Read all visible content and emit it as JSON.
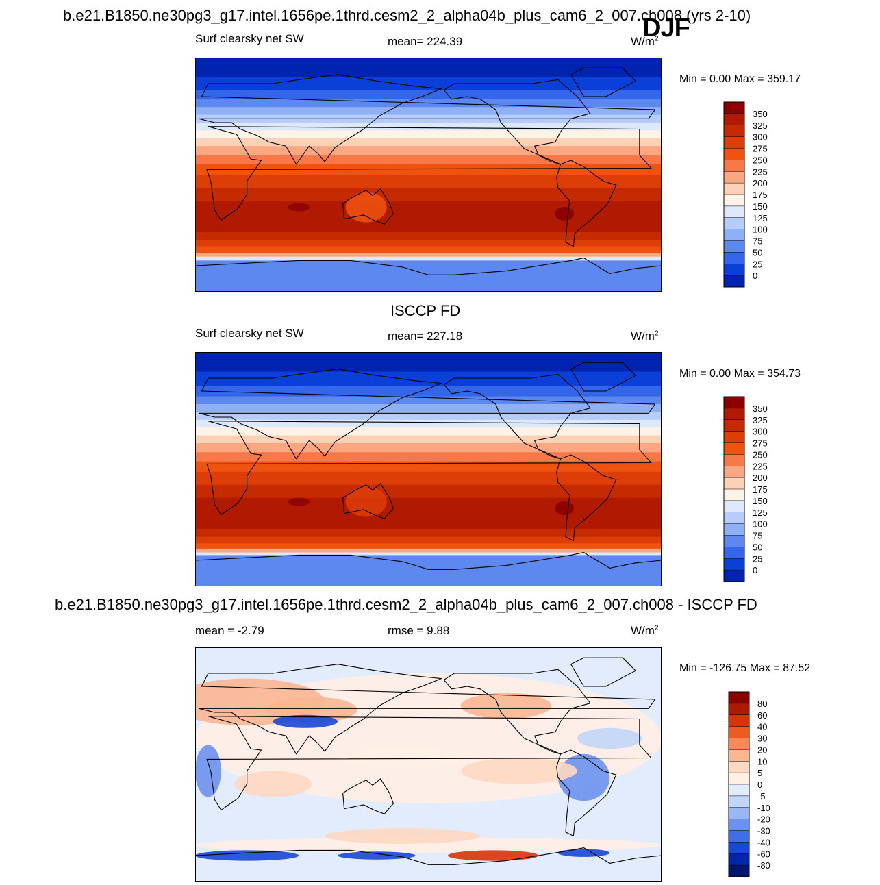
{
  "header": {
    "title": "b.e21.B1850.ne30pg3_g17.intel.1656pe.1thrd.cesm2_2_alpha04b_plus_cam6_2_007.ch008 (yrs 2-10)",
    "season": "DJF"
  },
  "panels": [
    {
      "id": "model",
      "heading": "",
      "left_label": "Surf clearsky net SW",
      "center_label": "mean= 224.39",
      "units": "W/m",
      "units_sup": "2",
      "minmax": "Min =   0.00 Max = 359.17"
    },
    {
      "id": "obs",
      "heading": "ISCCP FD",
      "left_label": "Surf clearsky net SW",
      "center_label": "mean= 227.18",
      "units": "W/m",
      "units_sup": "2",
      "minmax": "Min =   0.00 Max = 354.73"
    },
    {
      "id": "diff",
      "heading": "b.e21.B1850.ne30pg3_g17.intel.1656pe.1thrd.cesm2_2_alpha04b_plus_cam6_2_007.ch008 - ISCCP FD",
      "left_label": "mean =  -2.79",
      "center_label": "rmse =   9.88",
      "units": "W/m",
      "units_sup": "2",
      "minmax": "Min = -126.75 Max =  87.52"
    }
  ],
  "chart_data": [
    {
      "type": "heatmap",
      "title": "Surf clearsky net SW",
      "mean": 224.39,
      "units": "W/m2",
      "min": 0.0,
      "max": 359.17,
      "colorbar": {
        "levels": [
          "350",
          "325",
          "300",
          "275",
          "250",
          "225",
          "200",
          "175",
          "150",
          "125",
          "100",
          "75",
          "50",
          "25",
          "0"
        ],
        "colors": [
          "#8b0000",
          "#b01a00",
          "#c62a00",
          "#dd3d07",
          "#f0530f",
          "#f8784a",
          "#fba882",
          "#fdd1b5",
          "#fff2e6",
          "#dde8fb",
          "#b5cdf8",
          "#8fb0f4",
          "#5d88ef",
          "#3366e8",
          "#0a40d8",
          "#0024b0"
        ]
      },
      "zonal_profile_deg_lat": [
        90,
        60,
        30,
        0,
        -30,
        -60,
        -90
      ],
      "zonal_profile_value": [
        0,
        30,
        200,
        300,
        340,
        300,
        90
      ]
    },
    {
      "type": "heatmap",
      "title": "Surf clearsky net SW",
      "mean": 227.18,
      "units": "W/m2",
      "min": 0.0,
      "max": 354.73,
      "colorbar": {
        "levels": [
          "350",
          "325",
          "300",
          "275",
          "250",
          "225",
          "200",
          "175",
          "150",
          "125",
          "100",
          "75",
          "50",
          "25",
          "0"
        ],
        "colors": [
          "#8b0000",
          "#b01a00",
          "#c62a00",
          "#dd3d07",
          "#f0530f",
          "#f8784a",
          "#fba882",
          "#fdd1b5",
          "#fff2e6",
          "#dde8fb",
          "#b5cdf8",
          "#8fb0f4",
          "#5d88ef",
          "#3366e8",
          "#0a40d8",
          "#0024b0"
        ]
      },
      "zonal_profile_deg_lat": [
        90,
        60,
        30,
        0,
        -30,
        -60,
        -90
      ],
      "zonal_profile_value": [
        0,
        40,
        210,
        290,
        330,
        300,
        100
      ]
    },
    {
      "type": "heatmap",
      "title": "b.e21.B1850.ne30pg3_g17.intel.1656pe.1thrd.cesm2_2_alpha04b_plus_cam6_2_007.ch008 - ISCCP FD",
      "mean": -2.79,
      "rmse": 9.88,
      "units": "W/m2",
      "min": -126.75,
      "max": 87.52,
      "colorbar": {
        "levels": [
          "80",
          "60",
          "40",
          "30",
          "20",
          "10",
          "5",
          "0",
          "-5",
          "-10",
          "-20",
          "-30",
          "-40",
          "-60",
          "-80"
        ],
        "colors": [
          "#8b0000",
          "#b01a00",
          "#d8340a",
          "#ef5a1f",
          "#f98a58",
          "#fbb692",
          "#fdd8c2",
          "#fff0e4",
          "#e3ecfc",
          "#c2d6f9",
          "#98b7f4",
          "#6b92ee",
          "#3f6ee6",
          "#1848d6",
          "#0026aa",
          "#00156e"
        ]
      }
    }
  ]
}
